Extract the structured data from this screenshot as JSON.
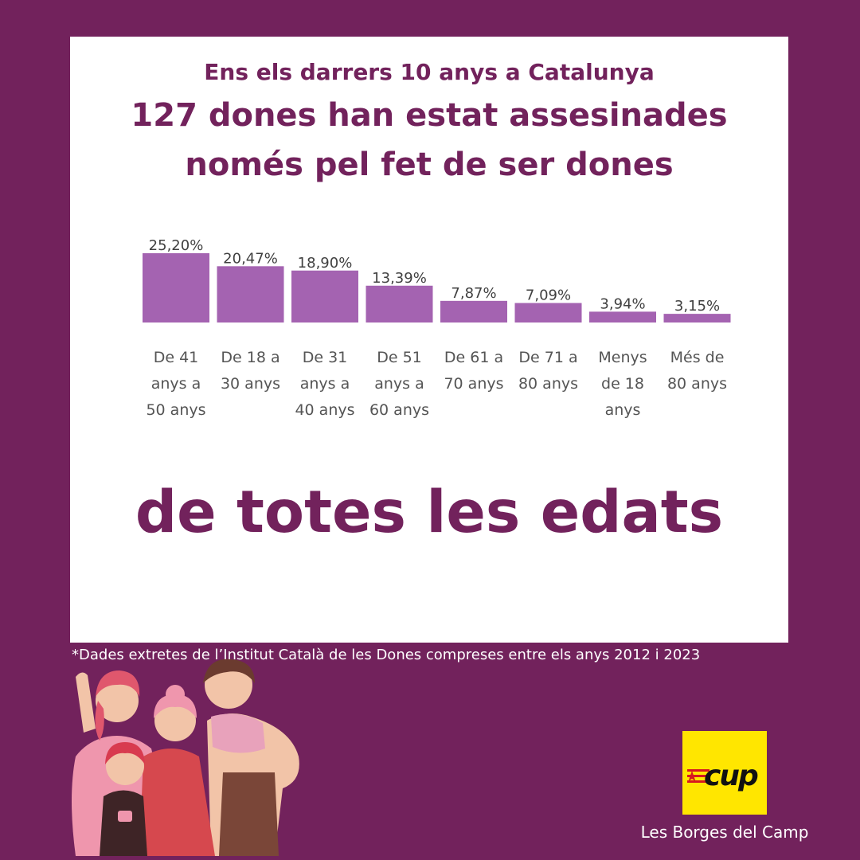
{
  "header": {
    "subtitle": "Ens els darrers 10 anys a Catalunya",
    "title_line1": "127 dones han estat assesinades",
    "title_line2": "només pel fet de ser dones"
  },
  "tagline": "de totes les edats",
  "footnote": "*Dades extretes de l’Institut Català de les Dones compreses entre els anys 2012 i 2023",
  "logo": {
    "text": "cup"
  },
  "location": "Les Borges del Camp",
  "colors": {
    "background": "#72225c",
    "bar": "#a463b1",
    "title": "#72225c",
    "logo": "#ffe600"
  },
  "chart_data": {
    "type": "bar",
    "categories": [
      [
        "De 41",
        "anys a",
        "50 anys"
      ],
      [
        "De 18 a",
        "30 anys"
      ],
      [
        "De 31",
        "anys a",
        "40 anys"
      ],
      [
        "De 51",
        "anys a",
        "60 anys"
      ],
      [
        "De 61 a",
        "70 anys"
      ],
      [
        "De 71 a",
        "80 anys"
      ],
      [
        "Menys",
        "de 18",
        "anys"
      ],
      [
        "Més de",
        "80 anys"
      ]
    ],
    "values": [
      25.2,
      20.47,
      18.9,
      13.39,
      7.87,
      7.09,
      3.94,
      3.15
    ],
    "value_labels": [
      "25,20%",
      "20,47%",
      "18,90%",
      "13,39%",
      "7,87%",
      "7,09%",
      "3,94%",
      "3,15%"
    ],
    "ylim": [
      0,
      25.2
    ],
    "grid": false
  }
}
